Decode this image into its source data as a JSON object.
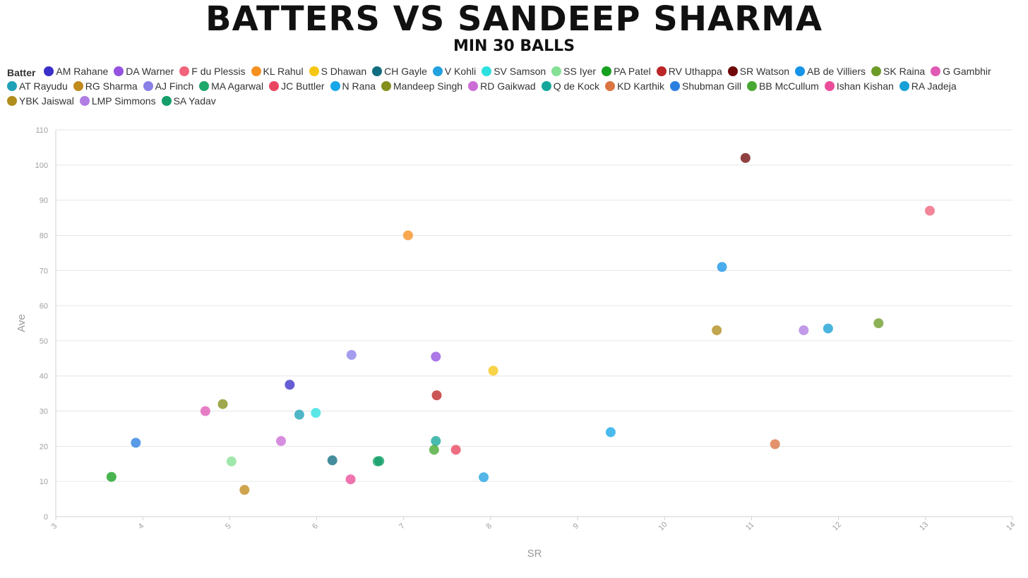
{
  "chart_data": {
    "type": "scatter",
    "title": "BATTERS VS SANDEEP SHARMA",
    "subtitle": "MIN 30 BALLS",
    "xlabel": "SR",
    "ylabel": "Ave",
    "xlim": [
      3,
      14
    ],
    "ylim": [
      0,
      110
    ],
    "x_ticks": [
      3,
      4,
      5,
      6,
      7,
      8,
      9,
      10,
      11,
      12,
      13,
      14
    ],
    "y_ticks": [
      0,
      10,
      20,
      30,
      40,
      50,
      60,
      70,
      80,
      90,
      100,
      110
    ],
    "grid": true,
    "legend_title": "Batter",
    "legend_position": "top",
    "series": [
      {
        "name": "AM Rahane",
        "color": "#3b2fc9",
        "x": 5.69,
        "y": 37.5
      },
      {
        "name": "DA Warner",
        "color": "#9553e0",
        "x": 7.37,
        "y": 45.5
      },
      {
        "name": "F du Plessis",
        "color": "#f0637b",
        "x": 13.05,
        "y": 87.0
      },
      {
        "name": "KL Rahul",
        "color": "#f58f1f",
        "x": 7.05,
        "y": 80.0
      },
      {
        "name": "S Dhawan",
        "color": "#f6c613",
        "x": 8.03,
        "y": 41.5
      },
      {
        "name": "CH Gayle",
        "color": "#116d80",
        "x": 6.18,
        "y": 16.0
      },
      {
        "name": "V Kohli",
        "color": "#23a2e0",
        "x": 7.92,
        "y": 11.2
      },
      {
        "name": "SV Samson",
        "color": "#2de0e0",
        "x": 5.99,
        "y": 29.5
      },
      {
        "name": "SS Iyer",
        "color": "#85e095",
        "x": 5.02,
        "y": 15.7
      },
      {
        "name": "PA Patel",
        "color": "#17a01f",
        "x": 3.64,
        "y": 11.3
      },
      {
        "name": "RV Uthappa",
        "color": "#bd2628",
        "x": 7.38,
        "y": 34.5
      },
      {
        "name": "SR Watson",
        "color": "#700a0a",
        "x": 10.93,
        "y": 102.0
      },
      {
        "name": "AB de Villiers",
        "color": "#1794e8",
        "x": 10.66,
        "y": 71.0
      },
      {
        "name": "SK Raina",
        "color": "#6c9b28",
        "x": 12.46,
        "y": 55.0
      },
      {
        "name": "G Gambhir",
        "color": "#e05ab5",
        "x": 4.72,
        "y": 30.0
      },
      {
        "name": "AT Rayudu",
        "color": "#1fa2b8",
        "x": 5.8,
        "y": 29.0
      },
      {
        "name": "RG Sharma",
        "color": "#c08a1c",
        "x": 5.17,
        "y": 7.6
      },
      {
        "name": "AJ Finch",
        "color": "#8a80e8",
        "x": 6.4,
        "y": 46.0
      },
      {
        "name": "MA Agarwal",
        "color": "#1ea86a",
        "x": 6.7,
        "y": 15.7
      },
      {
        "name": "JC Buttler",
        "color": "#e84560",
        "x": 7.6,
        "y": 19.0
      },
      {
        "name": "N Rana",
        "color": "#17a7e8",
        "x": 9.38,
        "y": 24.0
      },
      {
        "name": "Mandeep Singh",
        "color": "#848e1d",
        "x": 4.92,
        "y": 32.0
      },
      {
        "name": "RD Gaikwad",
        "color": "#cc6dd6",
        "x": 5.59,
        "y": 21.5
      },
      {
        "name": "Q de Kock",
        "color": "#14a79a",
        "x": 7.37,
        "y": 21.5
      },
      {
        "name": "KD Karthik",
        "color": "#db7443",
        "x": 11.27,
        "y": 20.6
      },
      {
        "name": "Shubman Gill",
        "color": "#2a7fe0",
        "x": 3.92,
        "y": 21.0
      },
      {
        "name": "BB McCullum",
        "color": "#46a832",
        "x": 7.35,
        "y": 19.0
      },
      {
        "name": "Ishan Kishan",
        "color": "#ea4d9a",
        "x": 6.39,
        "y": 10.6
      },
      {
        "name": "RA Jadeja",
        "color": "#17a0d6",
        "x": 11.88,
        "y": 53.5
      },
      {
        "name": "YBK Jaiswal",
        "color": "#b08d1c",
        "x": 10.6,
        "y": 53.0
      },
      {
        "name": "LMP Simmons",
        "color": "#b07ee3",
        "x": 11.6,
        "y": 53.0
      },
      {
        "name": "SA Yadav",
        "color": "#139e6a",
        "x": 6.72,
        "y": 15.8
      }
    ]
  }
}
